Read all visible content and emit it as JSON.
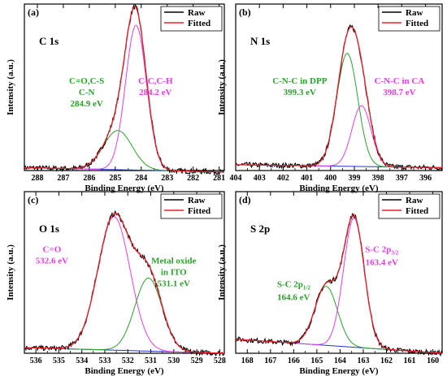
{
  "chart_data": [
    {
      "type": "line",
      "panel_label": "(a)",
      "element": "C 1s",
      "xlabel": "Binding Energy (eV)",
      "ylabel": "Intensity (a.u.)",
      "xlim": [
        288.5,
        280.8
      ],
      "ylim": [
        0,
        1.15
      ],
      "xticks": [
        288,
        287,
        286,
        285,
        284,
        283,
        282,
        281
      ],
      "legend": [
        "Raw",
        "Fitted"
      ],
      "legend_position": "top-right",
      "background": [
        0.02,
        -0.01
      ],
      "peaks": [
        {
          "center": 284.9,
          "fwhm": 1.3,
          "amp": 0.27,
          "color": "#2ca02c"
        },
        {
          "center": 284.2,
          "fwhm": 0.95,
          "amp": 1.0,
          "color": "#e040e0"
        }
      ],
      "annotations": [
        {
          "lines": [
            "C=O,C-S",
            "C-N",
            "284.9 eV"
          ],
          "color": "#2ca02c",
          "x": 286.1,
          "y": 0.6
        },
        {
          "lines": [
            "C-C,C-H",
            "284.2 eV"
          ],
          "color": "#e040e0",
          "x": 283.45,
          "y": 0.6
        }
      ]
    },
    {
      "type": "line",
      "panel_label": "(b)",
      "element": "N 1s",
      "xlabel": "Binding Energy (eV)",
      "ylabel": "Intensity (a.u.)",
      "xlim": [
        404,
        395.3
      ],
      "ylim": [
        0,
        1.15
      ],
      "xticks": [
        404,
        403,
        402,
        401,
        400,
        399,
        398,
        397,
        396
      ],
      "legend": [
        "Raw",
        "Fitted"
      ],
      "legend_position": "top-right",
      "background": [
        0.04,
        0.02
      ],
      "peaks": [
        {
          "center": 399.3,
          "fwhm": 1.05,
          "amp": 0.78,
          "color": "#2ca02c"
        },
        {
          "center": 398.7,
          "fwhm": 0.95,
          "amp": 0.42,
          "color": "#e040e0"
        }
      ],
      "annotations": [
        {
          "lines": [
            "C-N-C in DPP",
            "399.3 eV"
          ],
          "color": "#2ca02c",
          "x": 401.3,
          "y": 0.6
        },
        {
          "lines": [
            "C-N-C in CA",
            "398.7 eV"
          ],
          "color": "#e040e0",
          "x": 397.1,
          "y": 0.6
        }
      ]
    },
    {
      "type": "line",
      "panel_label": "(c)",
      "element": "O 1s",
      "xlabel": "Binding Energy (eV)",
      "ylabel": "Intensity (a.u.)",
      "xlim": [
        536.5,
        527.8
      ],
      "ylim": [
        0,
        1.15
      ],
      "xticks": [
        536,
        535,
        534,
        533,
        532,
        531,
        530,
        529,
        528
      ],
      "legend": [
        "Raw",
        "Fitted"
      ],
      "legend_position": "top-right",
      "background": [
        0.04,
        0.0
      ],
      "peaks": [
        {
          "center": 532.6,
          "fwhm": 1.65,
          "amp": 0.95,
          "color": "#e040e0"
        },
        {
          "center": 531.1,
          "fwhm": 1.4,
          "amp": 0.52,
          "color": "#2ca02c"
        }
      ],
      "annotations": [
        {
          "lines": [
            "C=O",
            "532.6 eV"
          ],
          "color": "#e040e0",
          "x": 535.3,
          "y": 0.72
        },
        {
          "lines": [
            "Metal oxide",
            "in ITO",
            "531.1 eV"
          ],
          "color": "#2ca02c",
          "x": 530.0,
          "y": 0.64
        }
      ]
    },
    {
      "type": "line",
      "panel_label": "(d)",
      "element": "S 2p",
      "xlabel": "Binding Energy (eV)",
      "ylabel": "Intensity (a.u.)",
      "xlim": [
        168.5,
        159.6
      ],
      "ylim": [
        0,
        1.15
      ],
      "xticks": [
        168,
        167,
        166,
        165,
        164,
        163,
        162,
        161,
        160
      ],
      "legend": [
        "Raw",
        "Fitted"
      ],
      "legend_position": "top-right",
      "background": [
        0.1,
        0.0
      ],
      "peaks": [
        {
          "center": 164.6,
          "fwhm": 1.15,
          "amp": 0.42,
          "color": "#2ca02c"
        },
        {
          "center": 163.4,
          "fwhm": 1.05,
          "amp": 0.92,
          "color": "#e040e0"
        }
      ],
      "annotations": [
        {
          "lines": [
            "S-C 2p",
            "1/2",
            "164.6 eV"
          ],
          "color": "#2ca02c",
          "x": 166.0,
          "y": 0.47,
          "subscript": true
        },
        {
          "lines": [
            "S-C 2p",
            "3/2",
            "163.4 eV"
          ],
          "color": "#e040e0",
          "x": 162.2,
          "y": 0.72,
          "subscript": true
        }
      ]
    }
  ]
}
